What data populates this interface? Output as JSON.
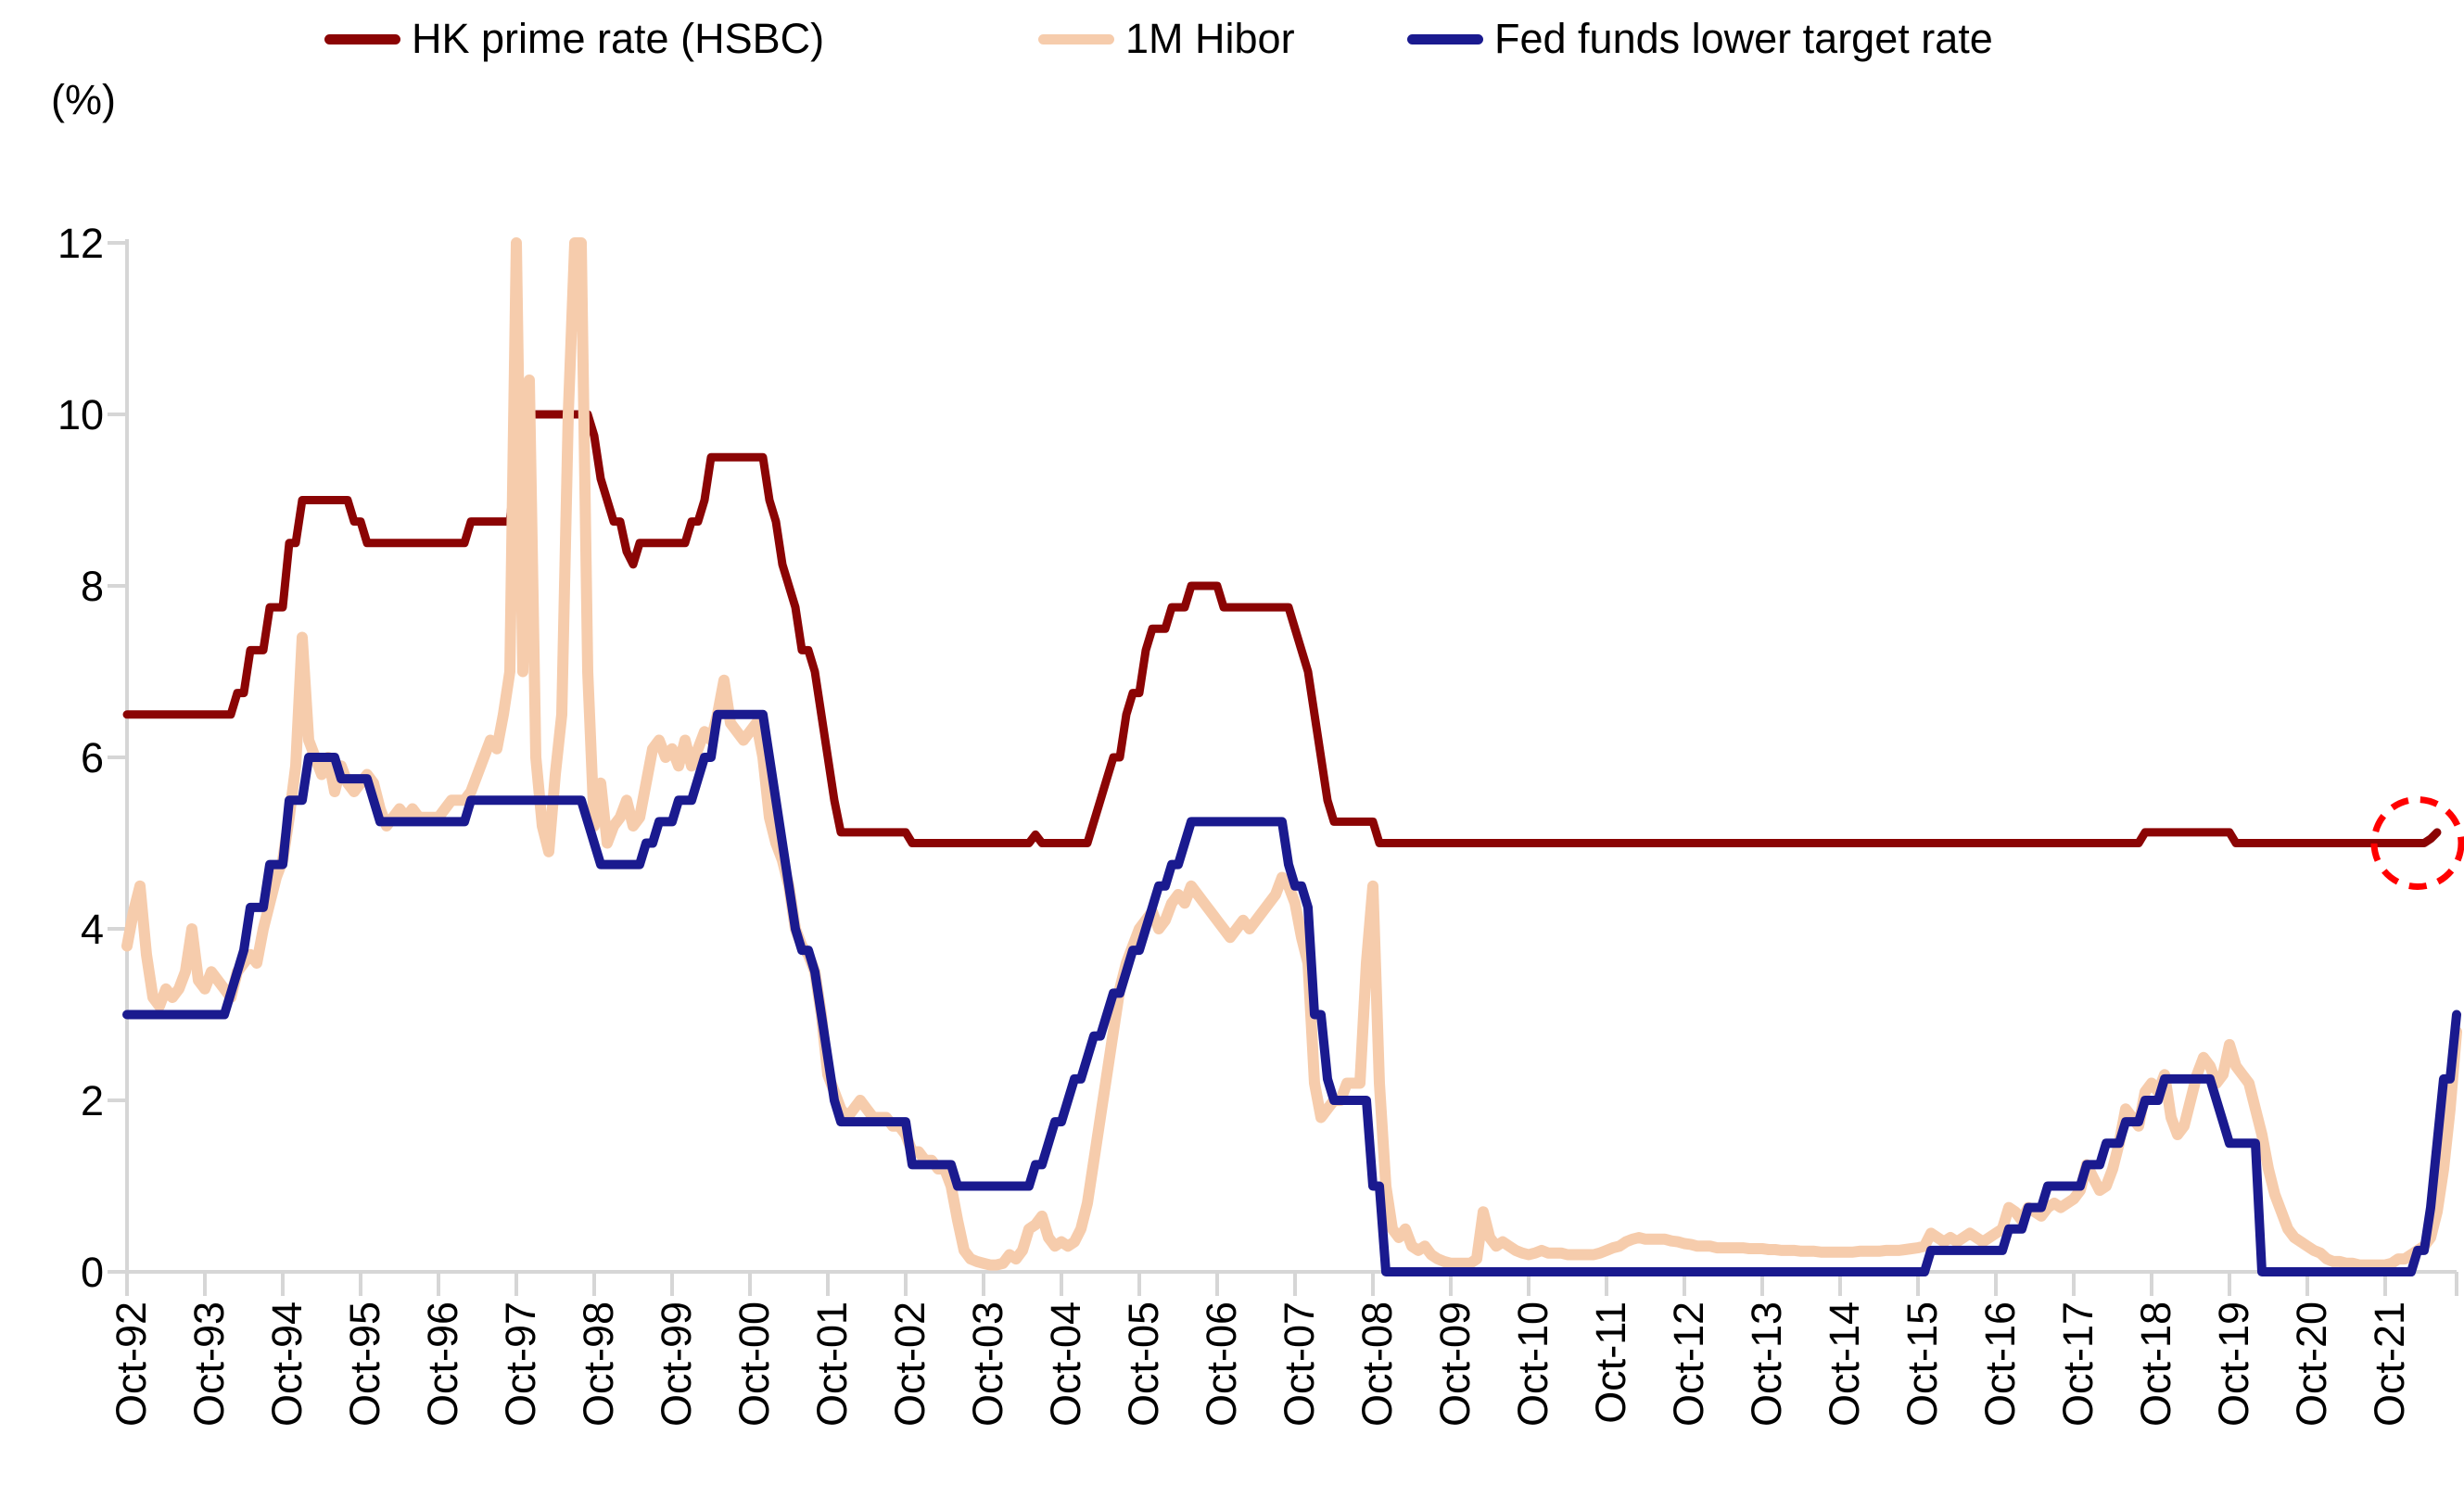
{
  "axis": {
    "percent_label": "(%)"
  },
  "legend": {
    "items": [
      {
        "label": "HK prime rate (HSBC)",
        "color": "#8B0404"
      },
      {
        "label": "1M Hibor",
        "color": "#F6CCAC"
      },
      {
        "label": "Fed funds lower target rate",
        "color": "#1A1A8F"
      }
    ]
  },
  "chart_data": {
    "type": "line",
    "title": "",
    "ylabel": "(%)",
    "ylim": [
      0,
      12
    ],
    "yticks": [
      0,
      2,
      4,
      6,
      8,
      10,
      12
    ],
    "grid": "none",
    "legend_position": "top",
    "axis_color": "#D6D6D6",
    "x_frequency": "monthly",
    "x_range": "Oct-1992 to Sep-2022",
    "x_months_per_tick": 12,
    "x_tick_labels": [
      "Oct-92",
      "Oct-93",
      "Oct-94",
      "Oct-95",
      "Oct-96",
      "Oct-97",
      "Oct-98",
      "Oct-99",
      "Oct-00",
      "Oct-01",
      "Oct-02",
      "Oct-03",
      "Oct-04",
      "Oct-05",
      "Oct-06",
      "Oct-07",
      "Oct-08",
      "Oct-09",
      "Oct-10",
      "Oct-11",
      "Oct-12",
      "Oct-13",
      "Oct-14",
      "Oct-15",
      "Oct-16",
      "Oct-17",
      "Oct-18",
      "Oct-19",
      "Oct-20",
      "Oct-21"
    ],
    "clip_note": "1M Hibor spikes in Oct-97 and Jul/Aug-98 exceed the 12% axis maximum and are clipped",
    "series": [
      {
        "name": "HK prime rate (HSBC)",
        "color": "#8B0404",
        "width": 9,
        "values": [
          6.5,
          6.5,
          6.5,
          6.5,
          6.5,
          6.5,
          6.5,
          6.5,
          6.5,
          6.5,
          6.5,
          6.5,
          6.5,
          6.5,
          6.5,
          6.5,
          6.5,
          6.75,
          6.75,
          7.25,
          7.25,
          7.25,
          7.75,
          7.75,
          7.75,
          8.5,
          8.5,
          9,
          9,
          9,
          9,
          9,
          9,
          9,
          9,
          8.75,
          8.75,
          8.5,
          8.5,
          8.5,
          8.5,
          8.5,
          8.5,
          8.5,
          8.5,
          8.5,
          8.5,
          8.5,
          8.5,
          8.5,
          8.5,
          8.5,
          8.5,
          8.75,
          8.75,
          8.75,
          8.75,
          8.75,
          8.75,
          8.75,
          9.5,
          10.25,
          10,
          10,
          10,
          10,
          10,
          10,
          10,
          10,
          10,
          10,
          9.75,
          9.25,
          9,
          8.75,
          8.75,
          8.4,
          8.25,
          8.5,
          8.5,
          8.5,
          8.5,
          8.5,
          8.5,
          8.5,
          8.5,
          8.75,
          8.75,
          9,
          9.5,
          9.5,
          9.5,
          9.5,
          9.5,
          9.5,
          9.5,
          9.5,
          9.5,
          9,
          8.75,
          8.25,
          8,
          7.75,
          7.25,
          7.25,
          7,
          6.5,
          6,
          5.5,
          5.125,
          5.125,
          5.125,
          5.125,
          5.125,
          5.125,
          5.125,
          5.125,
          5.125,
          5.125,
          5.125,
          5,
          5,
          5,
          5,
          5,
          5,
          5,
          5,
          5,
          5,
          5,
          5,
          5,
          5,
          5,
          5,
          5,
          5,
          5,
          5.1,
          5,
          5,
          5,
          5,
          5,
          5,
          5,
          5,
          5.25,
          5.5,
          5.75,
          6,
          6,
          6.5,
          6.75,
          6.75,
          7.25,
          7.5,
          7.5,
          7.5,
          7.75,
          7.75,
          7.75,
          8,
          8,
          8,
          8,
          8,
          7.75,
          7.75,
          7.75,
          7.75,
          7.75,
          7.75,
          7.75,
          7.75,
          7.75,
          7.75,
          7.75,
          7.5,
          7.25,
          7,
          6.5,
          6,
          5.5,
          5.25,
          5.25,
          5.25,
          5.25,
          5.25,
          5.25,
          5.25,
          5,
          5,
          5,
          5,
          5,
          5,
          5,
          5,
          5,
          5,
          5,
          5,
          5,
          5,
          5,
          5,
          5,
          5,
          5,
          5,
          5,
          5,
          5,
          5,
          5,
          5,
          5,
          5,
          5,
          5,
          5,
          5,
          5,
          5,
          5,
          5,
          5,
          5,
          5,
          5,
          5,
          5,
          5,
          5,
          5,
          5,
          5,
          5,
          5,
          5,
          5,
          5,
          5,
          5,
          5,
          5,
          5,
          5,
          5,
          5,
          5,
          5,
          5,
          5,
          5,
          5,
          5,
          5,
          5,
          5,
          5,
          5,
          5,
          5,
          5,
          5,
          5,
          5,
          5,
          5,
          5,
          5,
          5,
          5,
          5,
          5,
          5,
          5,
          5,
          5,
          5,
          5,
          5,
          5,
          5,
          5,
          5,
          5,
          5,
          5,
          5,
          5,
          5,
          5,
          5,
          5,
          5,
          5,
          5,
          5,
          5,
          5,
          5,
          5,
          5,
          5,
          5,
          5,
          5.125,
          5.125,
          5.125,
          5.125,
          5.125,
          5.125,
          5.125,
          5.125,
          5.125,
          5.125,
          5.125,
          5.125,
          5.125,
          5.125,
          5,
          5,
          5,
          5,
          5,
          5,
          5,
          5,
          5,
          5,
          5,
          5,
          5,
          5,
          5,
          5,
          5,
          5,
          5,
          5,
          5,
          5,
          5,
          5,
          5,
          5,
          5,
          5,
          5,
          5,
          5.05,
          5.125,
          null,
          null,
          null
        ]
      },
      {
        "name": "1M Hibor",
        "color": "#F6CCAC",
        "width": 12,
        "values": [
          3.8,
          4.2,
          4.5,
          3.7,
          3.2,
          3.1,
          3.3,
          3.2,
          3.3,
          3.5,
          4.0,
          3.4,
          3.3,
          3.5,
          3.4,
          3.3,
          3.2,
          3.5,
          3.6,
          3.7,
          3.6,
          4.0,
          4.3,
          4.6,
          4.8,
          5.3,
          5.9,
          7.4,
          6.2,
          6.0,
          5.8,
          6.0,
          5.6,
          5.9,
          5.7,
          5.6,
          5.7,
          5.8,
          5.7,
          5.4,
          5.2,
          5.3,
          5.4,
          5.3,
          5.4,
          5.3,
          5.3,
          5.3,
          5.3,
          5.4,
          5.5,
          5.5,
          5.5,
          5.6,
          5.8,
          6.0,
          6.2,
          6.1,
          6.5,
          7.0,
          13.0,
          7.0,
          10.4,
          6.0,
          5.2,
          4.9,
          5.8,
          6.5,
          10.0,
          13.5,
          13.2,
          7.0,
          5.2,
          5.7,
          5.0,
          5.2,
          5.3,
          5.5,
          5.2,
          5.3,
          5.7,
          6.1,
          6.2,
          6.0,
          6.1,
          5.9,
          6.2,
          5.9,
          6.1,
          6.3,
          6.2,
          6.5,
          6.9,
          6.4,
          6.3,
          6.2,
          6.3,
          6.4,
          6.0,
          5.3,
          5.0,
          4.8,
          4.5,
          4.0,
          3.8,
          3.7,
          3.5,
          3.0,
          2.3,
          2.1,
          1.9,
          1.8,
          1.9,
          2.0,
          1.9,
          1.8,
          1.8,
          1.8,
          1.7,
          1.7,
          1.6,
          1.4,
          1.4,
          1.3,
          1.3,
          1.2,
          1.2,
          1.0,
          0.6,
          0.25,
          0.15,
          0.12,
          0.1,
          0.08,
          0.08,
          0.1,
          0.2,
          0.15,
          0.25,
          0.5,
          0.55,
          0.65,
          0.4,
          0.3,
          0.35,
          0.3,
          0.35,
          0.5,
          0.8,
          1.3,
          1.8,
          2.3,
          2.8,
          3.3,
          3.6,
          3.8,
          4.0,
          4.1,
          4.2,
          4.0,
          4.1,
          4.3,
          4.4,
          4.3,
          4.5,
          4.4,
          4.3,
          4.2,
          4.1,
          4.0,
          3.9,
          4.0,
          4.1,
          4.0,
          4.1,
          4.2,
          4.3,
          4.4,
          4.6,
          4.5,
          4.3,
          3.9,
          3.6,
          2.2,
          1.8,
          1.9,
          2.0,
          2.0,
          2.2,
          2.2,
          2.2,
          3.6,
          4.5,
          2.2,
          1.0,
          0.5,
          0.4,
          0.5,
          0.3,
          0.25,
          0.3,
          0.2,
          0.15,
          0.12,
          0.1,
          0.1,
          0.1,
          0.1,
          0.15,
          0.7,
          0.4,
          0.3,
          0.35,
          0.3,
          0.25,
          0.22,
          0.2,
          0.22,
          0.25,
          0.22,
          0.22,
          0.22,
          0.2,
          0.2,
          0.2,
          0.2,
          0.2,
          0.22,
          0.25,
          0.28,
          0.3,
          0.35,
          0.38,
          0.4,
          0.38,
          0.38,
          0.38,
          0.38,
          0.36,
          0.35,
          0.33,
          0.32,
          0.3,
          0.3,
          0.3,
          0.28,
          0.28,
          0.28,
          0.28,
          0.28,
          0.27,
          0.27,
          0.27,
          0.26,
          0.26,
          0.25,
          0.25,
          0.25,
          0.24,
          0.24,
          0.24,
          0.23,
          0.23,
          0.23,
          0.23,
          0.23,
          0.23,
          0.24,
          0.24,
          0.24,
          0.24,
          0.25,
          0.25,
          0.25,
          0.26,
          0.27,
          0.28,
          0.3,
          0.45,
          0.4,
          0.35,
          0.4,
          0.35,
          0.4,
          0.45,
          0.4,
          0.35,
          0.4,
          0.45,
          0.5,
          0.75,
          0.7,
          0.6,
          0.75,
          0.7,
          0.65,
          0.75,
          0.8,
          0.75,
          0.8,
          0.85,
          0.95,
          1.25,
          1.1,
          0.95,
          1.0,
          1.2,
          1.5,
          1.9,
          1.8,
          1.7,
          2.1,
          2.2,
          2.1,
          2.3,
          1.8,
          1.6,
          1.7,
          2.0,
          2.3,
          2.5,
          2.4,
          2.2,
          2.3,
          2.65,
          2.4,
          2.3,
          2.2,
          1.9,
          1.6,
          1.2,
          0.9,
          0.7,
          0.5,
          0.4,
          0.35,
          0.3,
          0.25,
          0.22,
          0.15,
          0.12,
          0.12,
          0.1,
          0.1,
          0.08,
          0.08,
          0.08,
          0.08,
          0.08,
          0.1,
          0.15,
          0.15,
          0.2,
          0.25,
          0.3,
          0.4,
          0.7,
          1.2,
          1.9,
          2.8
        ]
      },
      {
        "name": "Fed funds lower target rate",
        "color": "#1A1A8F",
        "width": 10,
        "values": [
          3,
          3,
          3,
          3,
          3,
          3,
          3,
          3,
          3,
          3,
          3,
          3,
          3,
          3,
          3,
          3,
          3.25,
          3.5,
          3.75,
          4.25,
          4.25,
          4.25,
          4.75,
          4.75,
          4.75,
          5.5,
          5.5,
          5.5,
          6,
          6,
          6,
          6,
          6,
          5.75,
          5.75,
          5.75,
          5.75,
          5.75,
          5.5,
          5.25,
          5.25,
          5.25,
          5.25,
          5.25,
          5.25,
          5.25,
          5.25,
          5.25,
          5.25,
          5.25,
          5.25,
          5.25,
          5.25,
          5.5,
          5.5,
          5.5,
          5.5,
          5.5,
          5.5,
          5.5,
          5.5,
          5.5,
          5.5,
          5.5,
          5.5,
          5.5,
          5.5,
          5.5,
          5.5,
          5.5,
          5.5,
          5.25,
          5,
          4.75,
          4.75,
          4.75,
          4.75,
          4.75,
          4.75,
          4.75,
          5,
          5,
          5.25,
          5.25,
          5.25,
          5.5,
          5.5,
          5.5,
          5.75,
          6,
          6,
          6.5,
          6.5,
          6.5,
          6.5,
          6.5,
          6.5,
          6.5,
          6.5,
          6,
          5.5,
          5,
          4.5,
          4,
          3.75,
          3.75,
          3.5,
          3,
          2.5,
          2,
          1.75,
          1.75,
          1.75,
          1.75,
          1.75,
          1.75,
          1.75,
          1.75,
          1.75,
          1.75,
          1.75,
          1.25,
          1.25,
          1.25,
          1.25,
          1.25,
          1.25,
          1.25,
          1,
          1,
          1,
          1,
          1,
          1,
          1,
          1,
          1,
          1,
          1,
          1,
          1.25,
          1.25,
          1.5,
          1.75,
          1.75,
          2,
          2.25,
          2.25,
          2.5,
          2.75,
          2.75,
          3,
          3.25,
          3.25,
          3.5,
          3.75,
          3.75,
          4,
          4.25,
          4.5,
          4.5,
          4.75,
          4.75,
          5,
          5.25,
          5.25,
          5.25,
          5.25,
          5.25,
          5.25,
          5.25,
          5.25,
          5.25,
          5.25,
          5.25,
          5.25,
          5.25,
          5.25,
          5.25,
          4.75,
          4.5,
          4.5,
          4.25,
          3,
          3,
          2.25,
          2,
          2,
          2,
          2,
          2,
          2,
          1,
          1,
          0,
          0,
          0,
          0,
          0,
          0,
          0,
          0,
          0,
          0,
          0,
          0,
          0,
          0,
          0,
          0,
          0,
          0,
          0,
          0,
          0,
          0,
          0,
          0,
          0,
          0,
          0,
          0,
          0,
          0,
          0,
          0,
          0,
          0,
          0,
          0,
          0,
          0,
          0,
          0,
          0,
          0,
          0,
          0,
          0,
          0,
          0,
          0,
          0,
          0,
          0,
          0,
          0,
          0,
          0,
          0,
          0,
          0,
          0,
          0,
          0,
          0,
          0,
          0,
          0,
          0,
          0,
          0,
          0,
          0,
          0,
          0,
          0,
          0,
          0,
          0,
          0,
          0,
          0,
          0,
          0,
          0,
          0,
          0,
          0.25,
          0.25,
          0.25,
          0.25,
          0.25,
          0.25,
          0.25,
          0.25,
          0.25,
          0.25,
          0.25,
          0.25,
          0.5,
          0.5,
          0.5,
          0.75,
          0.75,
          0.75,
          1,
          1,
          1,
          1,
          1,
          1,
          1.25,
          1.25,
          1.25,
          1.5,
          1.5,
          1.5,
          1.75,
          1.75,
          1.75,
          2,
          2,
          2,
          2.25,
          2.25,
          2.25,
          2.25,
          2.25,
          2.25,
          2.25,
          2.25,
          2,
          1.75,
          1.5,
          1.5,
          1.5,
          1.5,
          1.5,
          0,
          0,
          0,
          0,
          0,
          0,
          0,
          0,
          0,
          0,
          0,
          0,
          0,
          0,
          0,
          0,
          0,
          0,
          0,
          0,
          0,
          0,
          0,
          0,
          0.25,
          0.25,
          0.75,
          1.5,
          2.25,
          2.25,
          3
        ]
      }
    ],
    "annotation": {
      "type": "dashed-circle",
      "color": "#FF0000",
      "center_index": 353,
      "center_value": 5.0,
      "radius_px": 47,
      "note": "highlights the latest uptick of the HK prime rate"
    }
  }
}
